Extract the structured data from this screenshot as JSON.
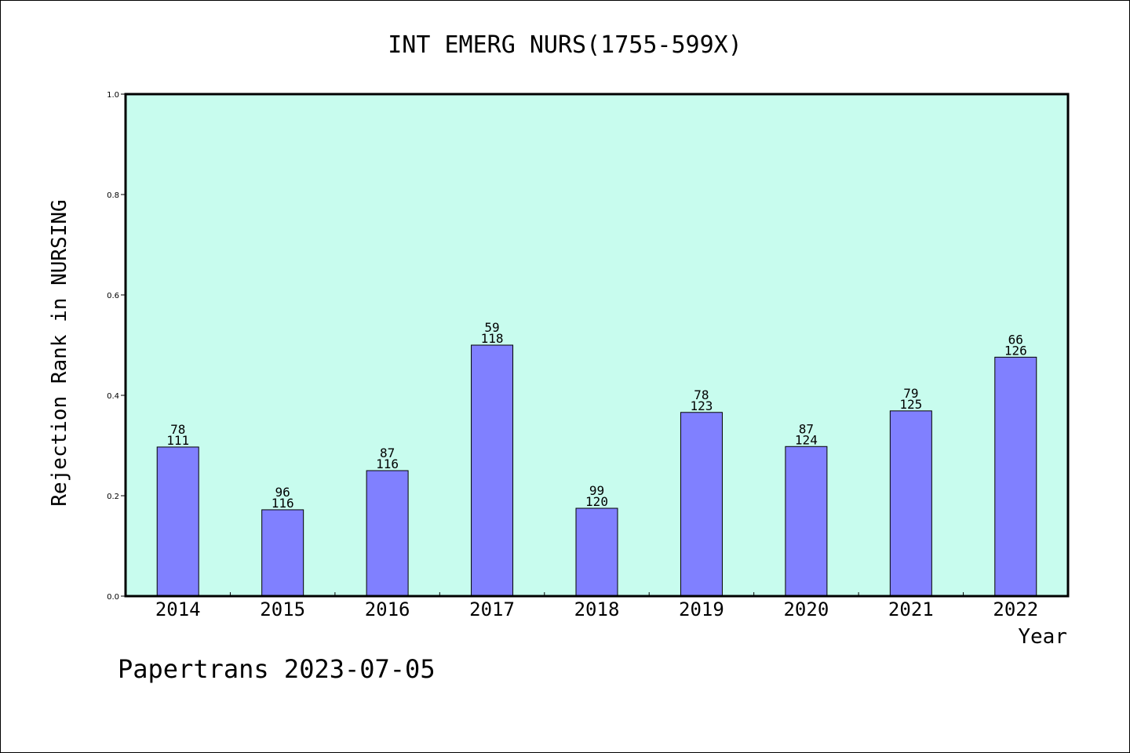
{
  "chart_data": {
    "type": "bar",
    "title": "INT EMERG NURS(1755-599X)",
    "xlabel": "Year",
    "ylabel": "Rejection Rank in NURSING",
    "categories": [
      "2014",
      "2015",
      "2016",
      "2017",
      "2018",
      "2019",
      "2020",
      "2021",
      "2022"
    ],
    "values": [
      0.297,
      0.172,
      0.25,
      0.5,
      0.175,
      0.366,
      0.298,
      0.369,
      0.476
    ],
    "bar_labels_top": [
      "78",
      "96",
      "87",
      "59",
      "99",
      "78",
      "87",
      "79",
      "66"
    ],
    "bar_labels_bottom": [
      "111",
      "116",
      "116",
      "118",
      "120",
      "123",
      "124",
      "125",
      "126"
    ],
    "ylim": [
      0,
      1.0
    ],
    "yticks": [
      "0.0",
      "0.2",
      "0.4",
      "0.6",
      "0.8",
      "1.0"
    ],
    "grid": false,
    "plot_background": "#c8fcee",
    "bar_color": "#8080ff"
  },
  "footer": "Papertrans 2023-07-05"
}
